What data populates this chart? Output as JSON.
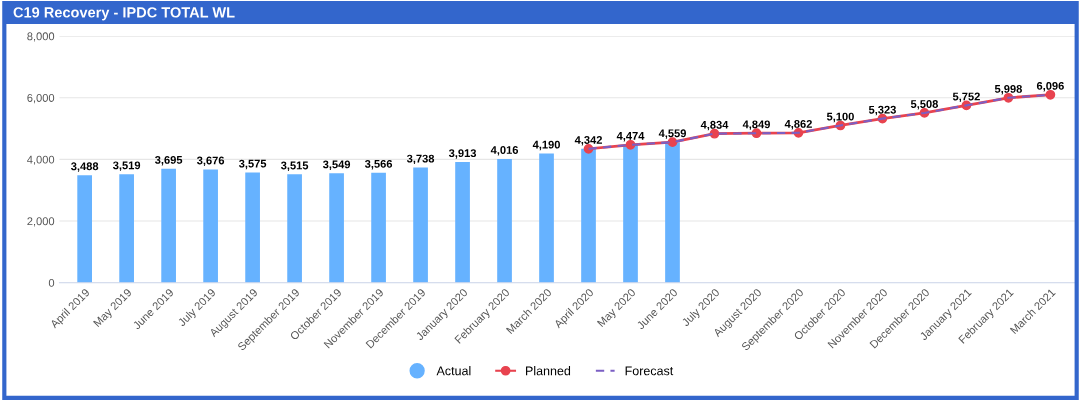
{
  "chart_data": {
    "type": "bar",
    "title": "C19 Recovery - IPDC TOTAL WL",
    "categories": [
      "April 2019",
      "May 2019",
      "June 2019",
      "July 2019",
      "August 2019",
      "September 2019",
      "October 2019",
      "November 2019",
      "December 2019",
      "January 2020",
      "February 2020",
      "March 2020",
      "April 2020",
      "May 2020",
      "June 2020",
      "July 2020",
      "August 2020",
      "September 2020",
      "October 2020",
      "November 2020",
      "December 2020",
      "January 2021",
      "February 2021",
      "March 2021"
    ],
    "series": [
      {
        "name": "Actual",
        "color": "#66b2ff",
        "values": [
          3488,
          3519,
          3695,
          3676,
          3575,
          3515,
          3549,
          3566,
          3738,
          3913,
          4016,
          4190,
          4342,
          4474,
          4559,
          null,
          null,
          null,
          null,
          null,
          null,
          null,
          null,
          null
        ],
        "value_labels": [
          "3,488",
          "3,519",
          "3,695",
          "3,676",
          "3,575",
          "3,515",
          "3,549",
          "3,566",
          "3,738",
          "3,913",
          "4,016",
          "4,190",
          "4,342",
          "4,474",
          "4,559",
          null,
          null,
          null,
          null,
          null,
          null,
          null,
          null,
          null
        ]
      },
      {
        "name": "Planned",
        "type": "line",
        "color": "#e8434f",
        "marker": "circle",
        "line_style": "solid",
        "values": [
          null,
          null,
          null,
          null,
          null,
          null,
          null,
          null,
          null,
          null,
          null,
          null,
          4342,
          4474,
          4559,
          4834,
          4849,
          4862,
          5100,
          5323,
          5508,
          5752,
          5998,
          6096
        ],
        "value_labels": [
          null,
          null,
          null,
          null,
          null,
          null,
          null,
          null,
          null,
          null,
          null,
          null,
          null,
          null,
          null,
          "4,834",
          "4,849",
          "4,862",
          "5,100",
          "5,323",
          "5,508",
          "5,752",
          "5,998",
          "6,096"
        ]
      },
      {
        "name": "Forecast",
        "type": "line",
        "color": "#7b5fc4",
        "marker": "none",
        "line_style": "dashed",
        "values": [
          null,
          null,
          null,
          null,
          null,
          null,
          null,
          null,
          null,
          null,
          null,
          null,
          4342,
          4474,
          4559,
          4834,
          4849,
          4862,
          5100,
          5323,
          5508,
          5752,
          5998,
          6096
        ]
      }
    ],
    "ylim": [
      0,
      8000
    ],
    "yticks": [
      {
        "value": 0,
        "label": "0"
      },
      {
        "value": 2000,
        "label": "2,000"
      },
      {
        "value": 4000,
        "label": "4,000"
      },
      {
        "value": 6000,
        "label": "6,000"
      },
      {
        "value": 8000,
        "label": "8,000"
      }
    ],
    "grid": "y",
    "legend": "bottom"
  }
}
